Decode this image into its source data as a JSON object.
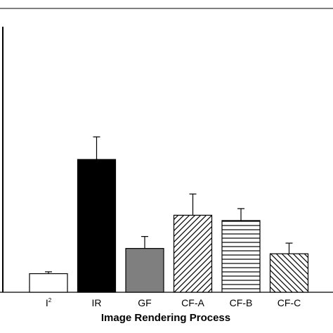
{
  "chart_data": {
    "type": "bar",
    "categories": [
      "I",
      "IR",
      "GF",
      "CF-A",
      "CF-B",
      "CF-C"
    ],
    "category_superscripts": [
      "2",
      "",
      "",
      "",
      "",
      ""
    ],
    "values": [
      7,
      50,
      16.5,
      29,
      27,
      14.5
    ],
    "errors": [
      0.7,
      8.5,
      4.5,
      8,
      4.5,
      4
    ],
    "bar_fills": [
      "white",
      "black",
      "gray",
      "diagonal-hatch",
      "horizontal-hatch",
      "backslash-hatch"
    ],
    "colors": {
      "black": "#000000",
      "gray": "#7f7f7f",
      "white": "#ffffff"
    },
    "xlabel": "Image Rendering Process",
    "ylabel": "",
    "ylim": [
      0,
      100
    ],
    "grid": false
  }
}
